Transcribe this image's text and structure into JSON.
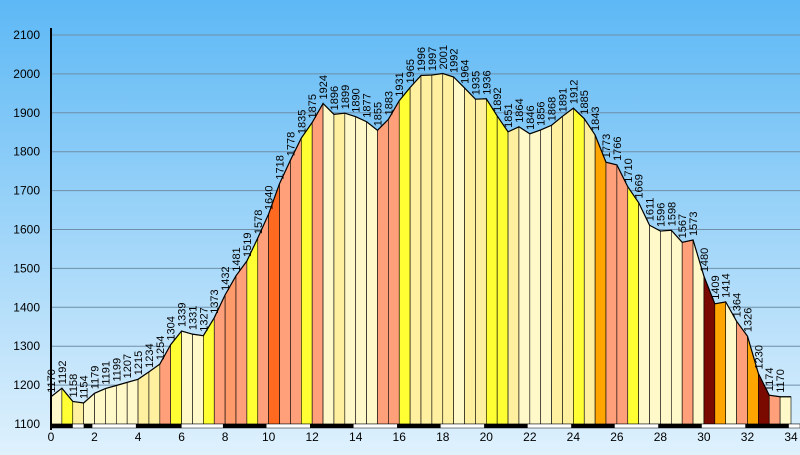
{
  "chart_data": {
    "type": "area",
    "title": "",
    "xlabel": "",
    "ylabel": "",
    "xlim": [
      0,
      34
    ],
    "ylim": [
      1100,
      2100
    ],
    "grid": true,
    "x_ticks": [
      "0",
      "2",
      "4",
      "6",
      "8",
      "10",
      "12",
      "14",
      "16",
      "18",
      "20",
      "22",
      "24",
      "26",
      "28",
      "30",
      "32",
      "34"
    ],
    "y_ticks": [
      "1100",
      "1200",
      "1300",
      "1400",
      "1500",
      "1600",
      "1700",
      "1800",
      "1900",
      "2000",
      "2100"
    ],
    "colors": {
      "background_top": "#5db8f5",
      "background_bottom": "#dff1fd",
      "grid": "#6f8fa8",
      "outline": "#000000",
      "axis": "#000000"
    },
    "points": [
      {
        "x": 0.0,
        "y": 1170
      },
      {
        "x": 0.5,
        "y": 1192
      },
      {
        "x": 1.0,
        "y": 1158
      },
      {
        "x": 1.5,
        "y": 1154
      },
      {
        "x": 2.0,
        "y": 1179
      },
      {
        "x": 2.5,
        "y": 1191
      },
      {
        "x": 3.0,
        "y": 1199
      },
      {
        "x": 3.5,
        "y": 1207
      },
      {
        "x": 4.0,
        "y": 1215
      },
      {
        "x": 4.5,
        "y": 1234
      },
      {
        "x": 5.0,
        "y": 1254
      },
      {
        "x": 5.5,
        "y": 1304
      },
      {
        "x": 6.0,
        "y": 1339
      },
      {
        "x": 6.5,
        "y": 1331
      },
      {
        "x": 7.0,
        "y": 1327
      },
      {
        "x": 7.5,
        "y": 1373
      },
      {
        "x": 8.0,
        "y": 1432
      },
      {
        "x": 8.5,
        "y": 1481
      },
      {
        "x": 9.0,
        "y": 1519
      },
      {
        "x": 9.5,
        "y": 1578
      },
      {
        "x": 10.0,
        "y": 1640
      },
      {
        "x": 10.5,
        "y": 1718
      },
      {
        "x": 11.0,
        "y": 1778
      },
      {
        "x": 11.5,
        "y": 1835
      },
      {
        "x": 12.0,
        "y": 1875
      },
      {
        "x": 12.5,
        "y": 1924
      },
      {
        "x": 13.0,
        "y": 1896
      },
      {
        "x": 13.5,
        "y": 1899
      },
      {
        "x": 14.0,
        "y": 1890
      },
      {
        "x": 14.5,
        "y": 1877
      },
      {
        "x": 15.0,
        "y": 1855
      },
      {
        "x": 15.5,
        "y": 1883
      },
      {
        "x": 16.0,
        "y": 1931
      },
      {
        "x": 16.5,
        "y": 1965
      },
      {
        "x": 17.0,
        "y": 1996
      },
      {
        "x": 17.5,
        "y": 1997
      },
      {
        "x": 18.0,
        "y": 2001
      },
      {
        "x": 18.5,
        "y": 1992
      },
      {
        "x": 19.0,
        "y": 1964
      },
      {
        "x": 19.5,
        "y": 1935
      },
      {
        "x": 20.0,
        "y": 1936
      },
      {
        "x": 20.5,
        "y": 1892
      },
      {
        "x": 21.0,
        "y": 1851
      },
      {
        "x": 21.5,
        "y": 1864
      },
      {
        "x": 22.0,
        "y": 1846
      },
      {
        "x": 22.5,
        "y": 1856
      },
      {
        "x": 23.0,
        "y": 1868
      },
      {
        "x": 23.5,
        "y": 1891
      },
      {
        "x": 24.0,
        "y": 1912
      },
      {
        "x": 24.5,
        "y": 1885
      },
      {
        "x": 25.0,
        "y": 1843
      },
      {
        "x": 25.5,
        "y": 1773
      },
      {
        "x": 26.0,
        "y": 1766
      },
      {
        "x": 26.5,
        "y": 1710
      },
      {
        "x": 27.0,
        "y": 1669
      },
      {
        "x": 27.5,
        "y": 1611
      },
      {
        "x": 28.0,
        "y": 1596
      },
      {
        "x": 28.5,
        "y": 1598
      },
      {
        "x": 29.0,
        "y": 1567
      },
      {
        "x": 29.5,
        "y": 1573
      },
      {
        "x": 30.0,
        "y": 1480
      },
      {
        "x": 30.5,
        "y": 1409
      },
      {
        "x": 31.0,
        "y": 1414
      },
      {
        "x": 31.5,
        "y": 1364
      },
      {
        "x": 32.0,
        "y": 1326
      },
      {
        "x": 32.5,
        "y": 1230
      },
      {
        "x": 33.0,
        "y": 1174
      },
      {
        "x": 33.5,
        "y": 1170
      }
    ],
    "segment_colors": [
      "#fff8c8",
      "#ffff33",
      "#fff0a0",
      "#fff8c8",
      "#fff8c8",
      "#fff8c8",
      "#fff8c8",
      "#fff8c8",
      "#fff0a0",
      "#fff0a0",
      "#ffa07a",
      "#ffff33",
      "#fff8c8",
      "#fff8c8",
      "#ffff33",
      "#ffa07a",
      "#ff9a6a",
      "#ffa07a",
      "#ffff33",
      "#ffa07a",
      "#ff6a20",
      "#ffa07a",
      "#ffa07a",
      "#ffff33",
      "#ffa07a",
      "#fff8c8",
      "#fff0a0",
      "#fff8c8",
      "#fff8c8",
      "#fff8c8",
      "#ffa07a",
      "#ffa07a",
      "#ffff33",
      "#fff0a0",
      "#fff0a0",
      "#fff0a0",
      "#fff0a0",
      "#fff8c8",
      "#fff0a0",
      "#fff0a0",
      "#ffff33",
      "#ffff33",
      "#fff0a0",
      "#fff8c8",
      "#fff8c8",
      "#fff8c8",
      "#fff0a0",
      "#fff0a0",
      "#ffff33",
      "#fff0a0",
      "#ffa500",
      "#ffa07a",
      "#ffa07a",
      "#ffff33",
      "#fff8c8",
      "#fff8c8",
      "#fff8c8",
      "#fff8c8",
      "#ffa07a",
      "#fff8c8",
      "#7a0a00",
      "#ffa500",
      "#fff8c8",
      "#ffa07a",
      "#ffa500",
      "#7a0a00",
      "#ffa07a"
    ],
    "data_labels": [
      "1170",
      "1192",
      "1158",
      "1154",
      "1179",
      "1191",
      "1199",
      "1207",
      "1215",
      "1234",
      "1254",
      "1304",
      "1339",
      "1331",
      "1327",
      "1373",
      "1432",
      "1481",
      "1519",
      "1578",
      "1640",
      "1718",
      "1778",
      "1835",
      "1875",
      "1924",
      "1896",
      "1899",
      "1890",
      "1877",
      "1855",
      "1883",
      "1931",
      "1965",
      "1996",
      "1997",
      "2001",
      "1992",
      "1964",
      "1935",
      "1936",
      "1892",
      "1851",
      "1864",
      "1846",
      "1856",
      "1868",
      "1891",
      "1912",
      "1885",
      "1843",
      "1773",
      "1766",
      "1710",
      "1669",
      "1611",
      "1596",
      "1598",
      "1567",
      "1573",
      "1480",
      "1409",
      "1414",
      "1364",
      "1326",
      "1230",
      "1174",
      "1170"
    ],
    "x_axis_stripes": [
      [
        0,
        1
      ],
      [
        1.5,
        1.9
      ],
      [
        3.9,
        6.0
      ],
      [
        7.9,
        9.9
      ],
      [
        11.9,
        13.9
      ],
      [
        15.9,
        17.9
      ],
      [
        19.9,
        21.9
      ],
      [
        23.9,
        25.9
      ],
      [
        27.9,
        29.9
      ],
      [
        31.9,
        33.9
      ]
    ]
  }
}
